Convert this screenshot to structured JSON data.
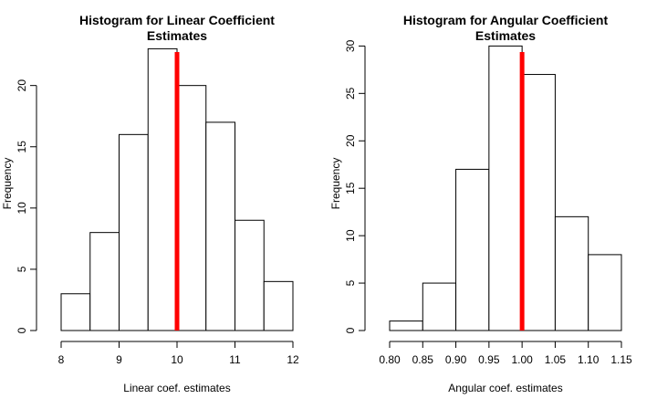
{
  "chart_data": [
    {
      "type": "histogram",
      "title_lines": [
        "Histogram for Linear Coefficient",
        "Estimates"
      ],
      "xlabel": "Linear coef. estimates",
      "ylabel": "Frequency",
      "bins": [
        {
          "x0": 8.0,
          "x1": 8.5,
          "count": 3
        },
        {
          "x0": 8.5,
          "x1": 9.0,
          "count": 8
        },
        {
          "x0": 9.0,
          "x1": 9.5,
          "count": 16
        },
        {
          "x0": 9.5,
          "x1": 10.0,
          "count": 23
        },
        {
          "x0": 10.0,
          "x1": 10.5,
          "count": 20
        },
        {
          "x0": 10.5,
          "x1": 11.0,
          "count": 17
        },
        {
          "x0": 11.0,
          "x1": 11.5,
          "count": 9
        },
        {
          "x0": 11.5,
          "x1": 12.0,
          "count": 4
        }
      ],
      "xlim": [
        8,
        12
      ],
      "ylim": [
        0,
        24
      ],
      "x_ticks": [
        "8",
        "9",
        "10",
        "11",
        "12"
      ],
      "y_ticks": [
        "0",
        "5",
        "10",
        "15",
        "20"
      ],
      "reference_line": {
        "x": 10,
        "color": "#ff0000"
      }
    },
    {
      "type": "histogram",
      "title_lines": [
        "Histogram for Angular Coefficient",
        "Estimates"
      ],
      "xlabel": "Angular coef. estimates",
      "ylabel": "Frequency",
      "bins": [
        {
          "x0": 0.8,
          "x1": 0.85,
          "count": 1
        },
        {
          "x0": 0.85,
          "x1": 0.9,
          "count": 5
        },
        {
          "x0": 0.9,
          "x1": 0.95,
          "count": 17
        },
        {
          "x0": 0.95,
          "x1": 1.0,
          "count": 30
        },
        {
          "x0": 1.0,
          "x1": 1.05,
          "count": 27
        },
        {
          "x0": 1.05,
          "x1": 1.1,
          "count": 12
        },
        {
          "x0": 1.1,
          "x1": 1.15,
          "count": 8
        }
      ],
      "xlim": [
        0.8,
        1.15
      ],
      "ylim": [
        0,
        31
      ],
      "x_ticks": [
        "0.80",
        "0.85",
        "0.90",
        "0.95",
        "1.00",
        "1.05",
        "1.10",
        "1.15"
      ],
      "y_ticks": [
        "0",
        "5",
        "10",
        "15",
        "20",
        "25",
        "30"
      ],
      "reference_line": {
        "x": 1.0,
        "color": "#ff0000"
      }
    }
  ]
}
